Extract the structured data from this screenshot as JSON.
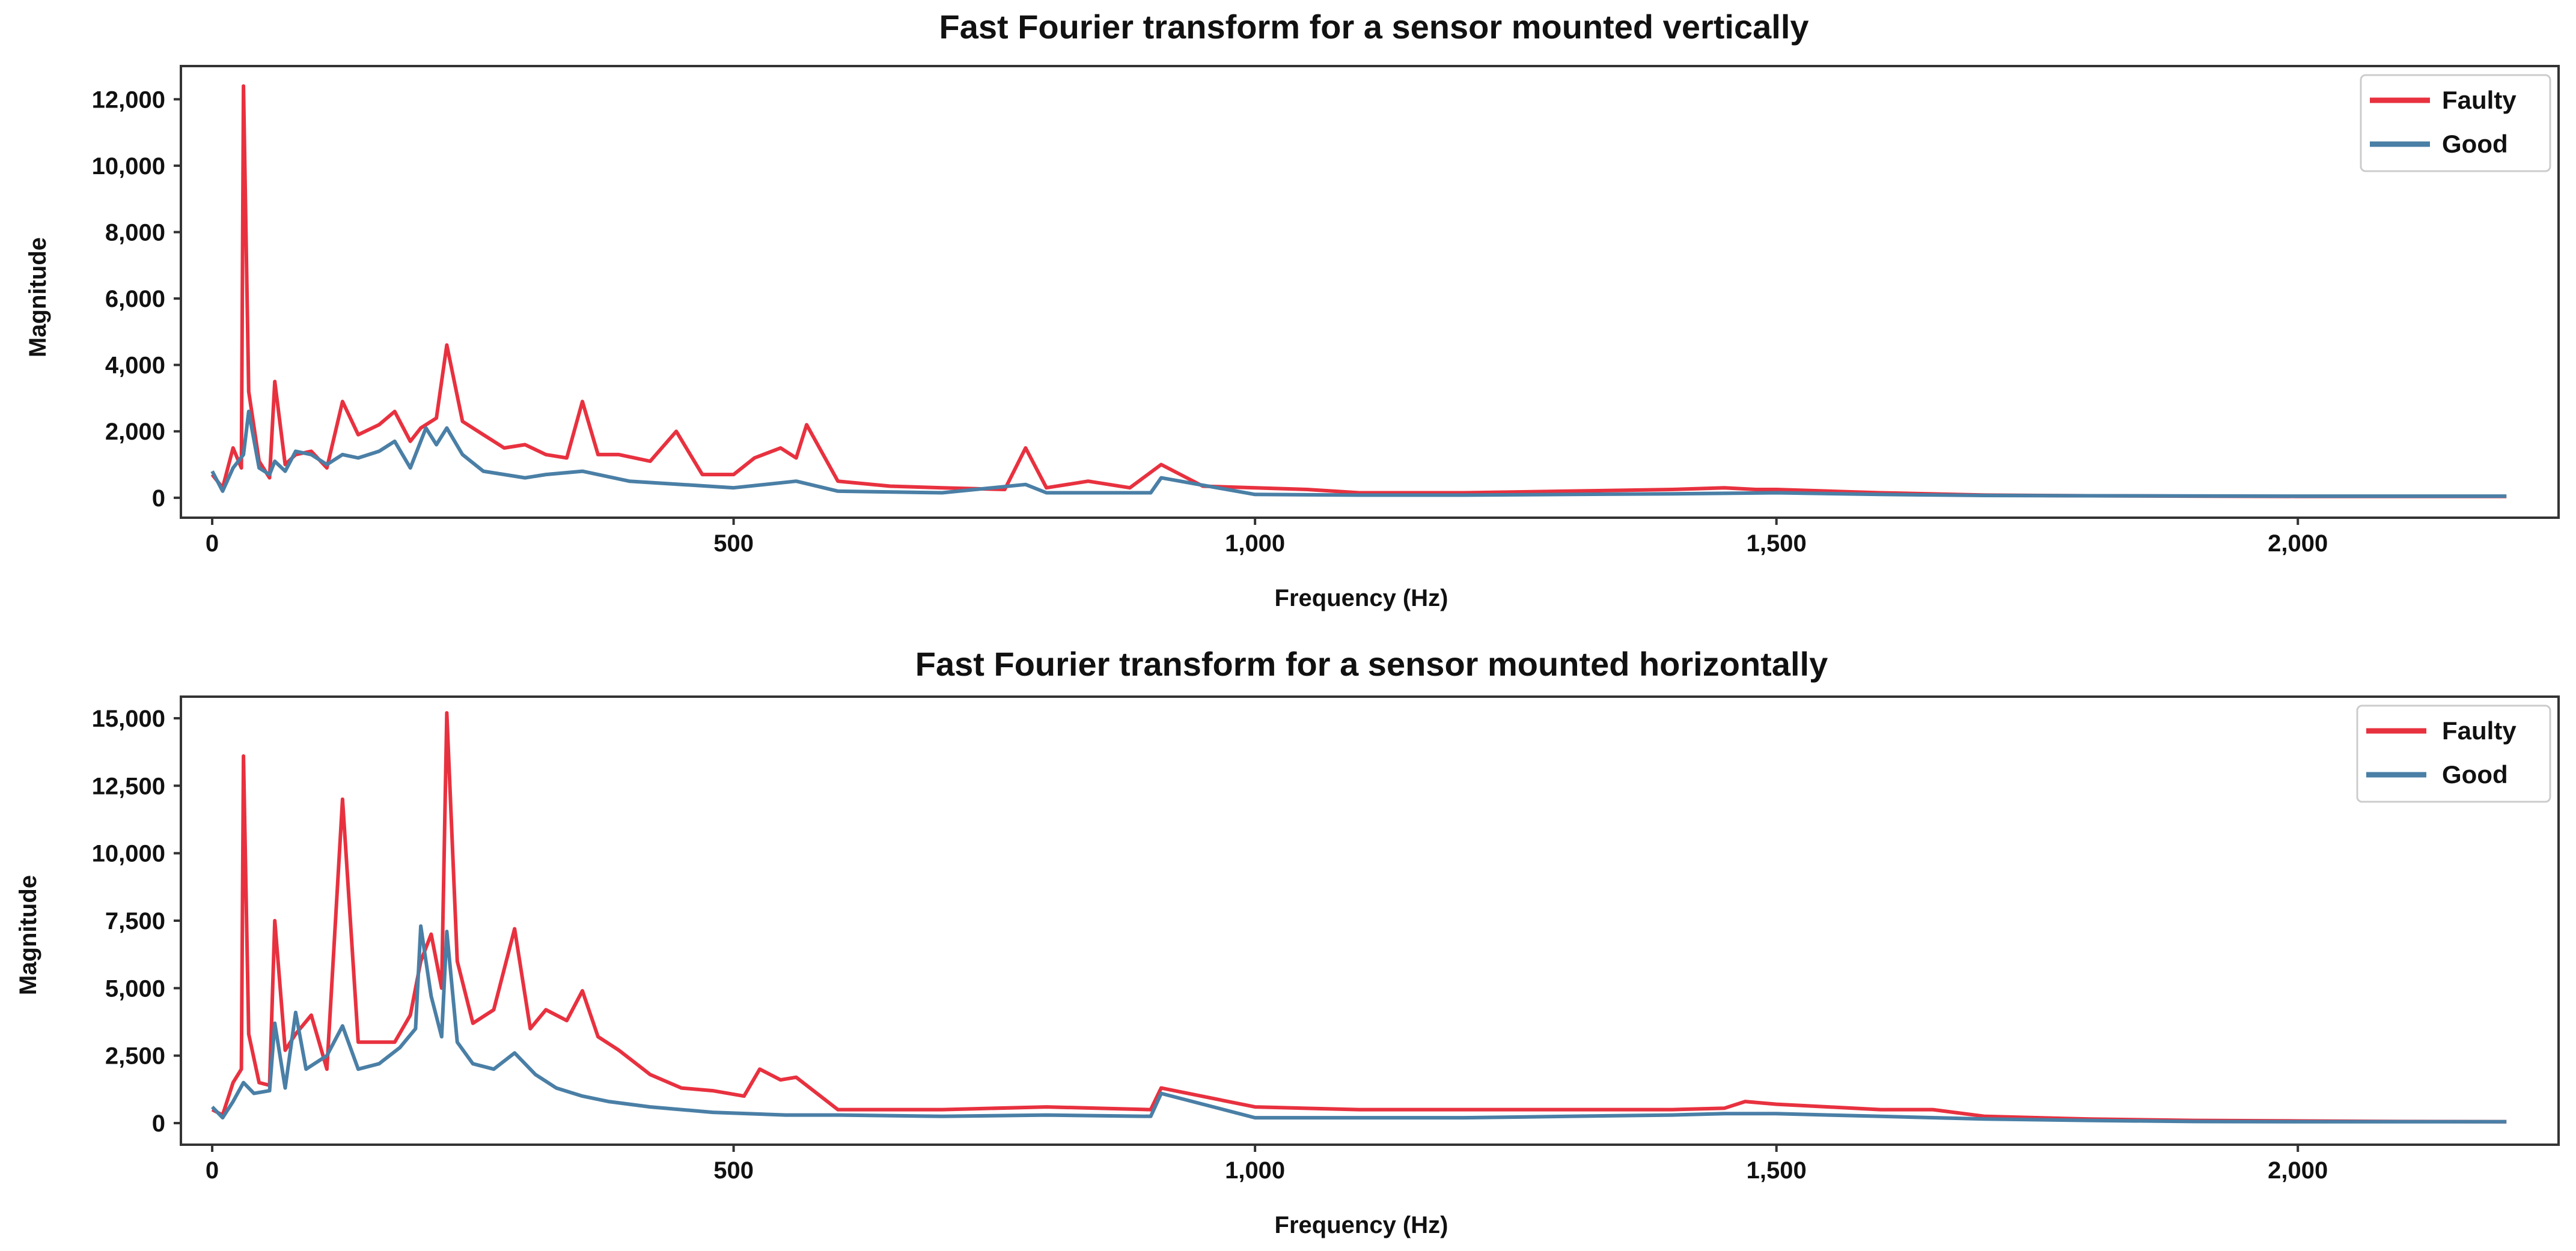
{
  "colors": {
    "faulty": "#e8313f",
    "good": "#4a7fa6"
  },
  "chart_data": [
    {
      "type": "line",
      "title": "Fast Fourier transform for a sensor mounted vertically",
      "xlabel": "Frequency (Hz)",
      "ylabel": "Magnitude",
      "xlim": [
        -30,
        2250
      ],
      "ylim": [
        -600,
        13000
      ],
      "xticks": [
        0,
        500,
        1000,
        1500,
        2000
      ],
      "xtick_labels": [
        "0",
        "500",
        "1,000",
        "1,500",
        "2,000"
      ],
      "yticks": [
        0,
        2000,
        4000,
        6000,
        8000,
        10000,
        12000
      ],
      "ytick_labels": [
        "0",
        "2,000",
        "4,000",
        "6,000",
        "8,000",
        "10,000",
        "12,000"
      ],
      "legend": [
        "Faulty",
        "Good"
      ],
      "legend_position": "top-right",
      "series": [
        {
          "name": "Faulty",
          "x": [
            0,
            10,
            20,
            28,
            30,
            35,
            45,
            55,
            60,
            70,
            80,
            95,
            110,
            125,
            140,
            160,
            175,
            190,
            200,
            215,
            225,
            240,
            260,
            280,
            300,
            320,
            340,
            355,
            370,
            390,
            420,
            445,
            470,
            500,
            520,
            545,
            560,
            570,
            600,
            650,
            700,
            760,
            780,
            800,
            840,
            880,
            910,
            950,
            1000,
            1050,
            1100,
            1200,
            1300,
            1400,
            1450,
            1480,
            1500,
            1550,
            1600,
            1700,
            1800,
            1900,
            2000,
            2100,
            2200
          ],
          "y": [
            700,
            300,
            1500,
            900,
            12400,
            3200,
            1100,
            600,
            3500,
            1000,
            1300,
            1400,
            900,
            2900,
            1900,
            2200,
            2600,
            1700,
            2100,
            2400,
            4600,
            2300,
            1900,
            1500,
            1600,
            1300,
            1200,
            2900,
            1300,
            1300,
            1100,
            2000,
            700,
            700,
            1200,
            1500,
            1200,
            2200,
            500,
            350,
            300,
            250,
            1500,
            300,
            500,
            300,
            1000,
            350,
            300,
            250,
            150,
            150,
            200,
            250,
            300,
            250,
            250,
            200,
            150,
            80,
            60,
            50,
            40,
            40,
            40
          ]
        },
        {
          "name": "Good",
          "x": [
            0,
            10,
            20,
            30,
            35,
            45,
            55,
            60,
            70,
            80,
            95,
            110,
            125,
            140,
            160,
            175,
            190,
            205,
            215,
            225,
            240,
            260,
            280,
            300,
            320,
            355,
            400,
            450,
            500,
            560,
            600,
            700,
            780,
            800,
            900,
            910,
            1000,
            1100,
            1200,
            1400,
            1500,
            1600,
            1700,
            1800,
            2000,
            2200
          ],
          "y": [
            800,
            200,
            900,
            1300,
            2600,
            900,
            700,
            1100,
            800,
            1400,
            1300,
            1000,
            1300,
            1200,
            1400,
            1700,
            900,
            2100,
            1600,
            2100,
            1300,
            800,
            700,
            600,
            700,
            800,
            500,
            400,
            300,
            500,
            200,
            150,
            400,
            150,
            150,
            600,
            100,
            80,
            80,
            120,
            150,
            100,
            70,
            60,
            50,
            50
          ]
        }
      ]
    },
    {
      "type": "line",
      "title": "Fast Fourier transform for a sensor mounted horizontally",
      "xlabel": "Frequency (Hz)",
      "ylabel": "Magnitude",
      "xlim": [
        -30,
        2250
      ],
      "ylim": [
        -800,
        15800
      ],
      "xticks": [
        0,
        500,
        1000,
        1500,
        2000
      ],
      "xtick_labels": [
        "0",
        "500",
        "1,000",
        "1,500",
        "2,000"
      ],
      "yticks": [
        0,
        2500,
        5000,
        7500,
        10000,
        12500,
        15000
      ],
      "ytick_labels": [
        "0",
        "2,500",
        "5,000",
        "7,500",
        "10,000",
        "12,500",
        "15,000"
      ],
      "legend": [
        "Faulty",
        "Good"
      ],
      "legend_position": "top-right",
      "series": [
        {
          "name": "Faulty",
          "x": [
            0,
            10,
            20,
            28,
            30,
            35,
            45,
            55,
            60,
            70,
            80,
            95,
            110,
            125,
            140,
            160,
            175,
            190,
            200,
            210,
            220,
            225,
            235,
            250,
            270,
            290,
            305,
            320,
            340,
            355,
            370,
            390,
            420,
            450,
            480,
            510,
            525,
            545,
            560,
            600,
            700,
            800,
            900,
            910,
            1000,
            1100,
            1200,
            1300,
            1400,
            1450,
            1470,
            1500,
            1550,
            1600,
            1650,
            1700,
            1800,
            1900,
            2000,
            2100,
            2200
          ],
          "y": [
            500,
            300,
            1500,
            2000,
            13600,
            3300,
            1500,
            1400,
            7500,
            2700,
            3300,
            4000,
            2000,
            12000,
            3000,
            3000,
            3000,
            4000,
            6000,
            7000,
            5000,
            15200,
            6000,
            3700,
            4200,
            7200,
            3500,
            4200,
            3800,
            4900,
            3200,
            2700,
            1800,
            1300,
            1200,
            1000,
            2000,
            1600,
            1700,
            500,
            500,
            600,
            500,
            1300,
            600,
            500,
            500,
            500,
            500,
            550,
            800,
            700,
            600,
            500,
            500,
            250,
            150,
            100,
            80,
            60,
            50
          ]
        },
        {
          "name": "Good",
          "x": [
            0,
            10,
            20,
            30,
            40,
            55,
            60,
            70,
            80,
            90,
            110,
            125,
            140,
            160,
            180,
            195,
            200,
            205,
            210,
            220,
            225,
            235,
            250,
            270,
            290,
            310,
            330,
            355,
            380,
            420,
            480,
            550,
            600,
            700,
            800,
            900,
            910,
            1000,
            1100,
            1200,
            1300,
            1400,
            1450,
            1500,
            1550,
            1600,
            1700,
            1800,
            1900,
            2000,
            2200
          ],
          "y": [
            600,
            200,
            800,
            1500,
            1100,
            1200,
            3700,
            1300,
            4100,
            2000,
            2500,
            3600,
            2000,
            2200,
            2800,
            3500,
            7300,
            6000,
            4700,
            3200,
            7100,
            3000,
            2200,
            2000,
            2600,
            1800,
            1300,
            1000,
            800,
            600,
            400,
            300,
            300,
            250,
            300,
            250,
            1100,
            200,
            200,
            200,
            250,
            300,
            350,
            350,
            300,
            250,
            150,
            100,
            60,
            50,
            50
          ]
        }
      ]
    }
  ]
}
